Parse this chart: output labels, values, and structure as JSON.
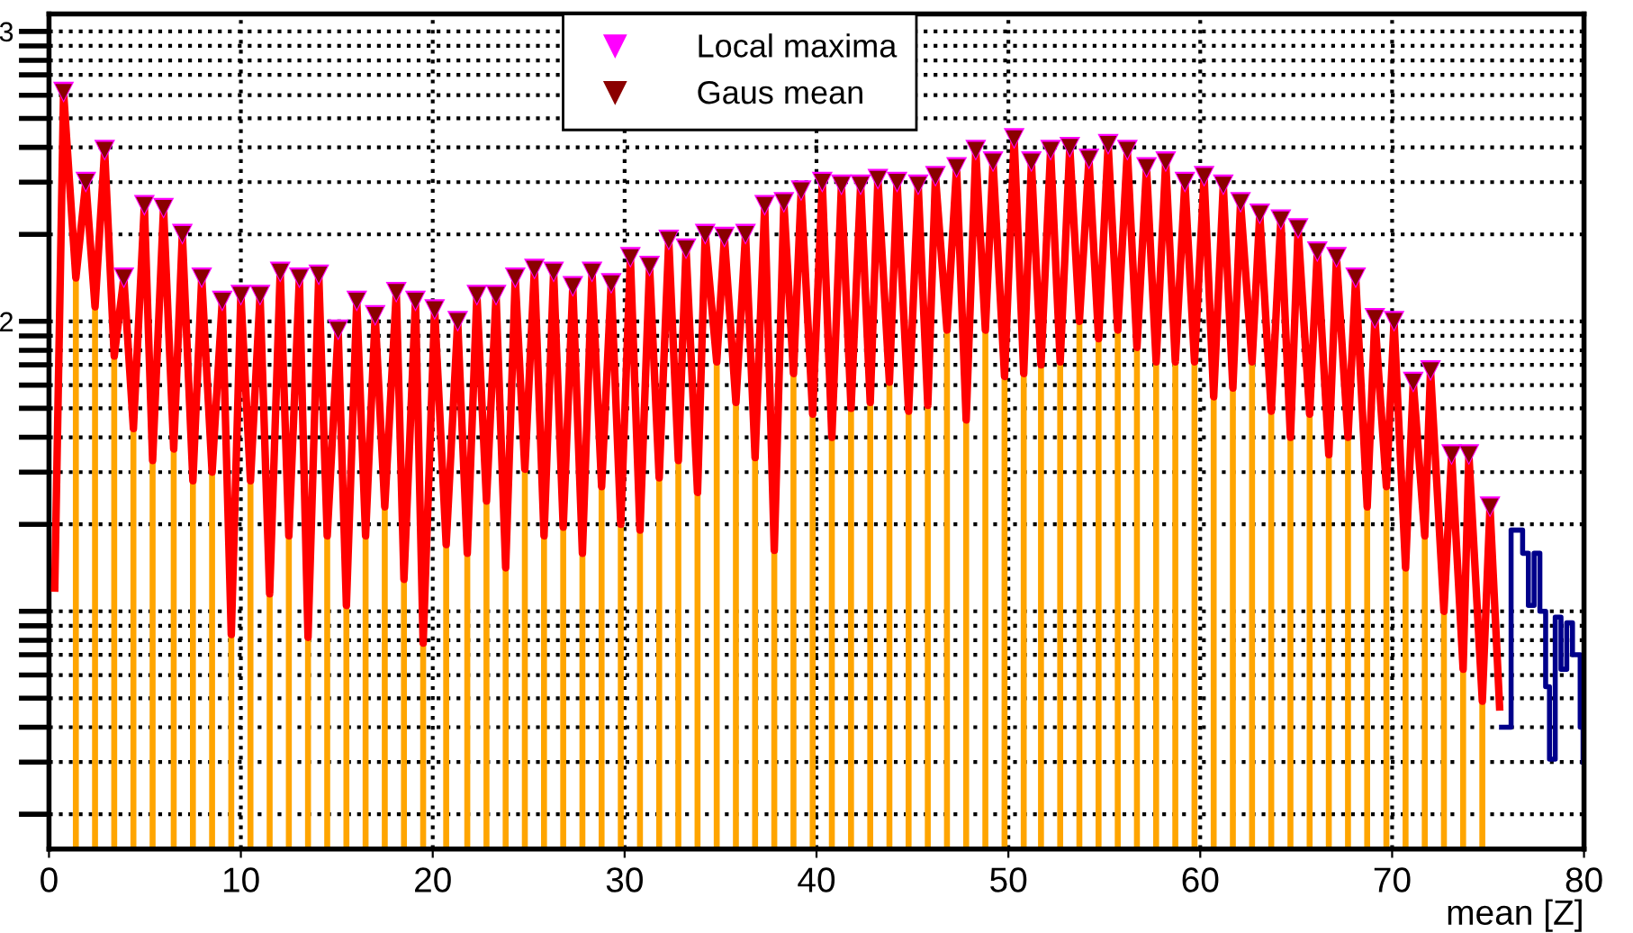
{
  "chart_data": {
    "type": "line",
    "xlabel": "mean [Z]",
    "grid": true,
    "legend": "top",
    "xlim": [
      0,
      80
    ],
    "xticks": [
      0,
      10,
      20,
      30,
      40,
      50,
      60,
      70,
      80
    ],
    "ylim": [
      0.18,
      3.06
    ],
    "yticks": [
      {
        "value": 0.3,
        "label": null
      },
      {
        "value": 0.48,
        "label": null
      },
      {
        "value": 0.6,
        "label": null
      },
      {
        "value": 0.7,
        "label": null
      },
      {
        "value": 0.78,
        "label": null
      },
      {
        "value": 0.85,
        "label": null
      },
      {
        "value": 0.9,
        "label": null
      },
      {
        "value": 0.95,
        "label": null
      },
      {
        "value": 1,
        "label": null
      },
      {
        "value": 1.3,
        "label": null
      },
      {
        "value": 1.48,
        "label": null
      },
      {
        "value": 1.6,
        "label": null
      },
      {
        "value": 1.7,
        "label": null
      },
      {
        "value": 1.78,
        "label": null
      },
      {
        "value": 1.85,
        "label": null
      },
      {
        "value": 1.9,
        "label": null
      },
      {
        "value": 1.95,
        "label": null
      },
      2,
      {
        "value": 2.3,
        "label": null
      },
      {
        "value": 2.48,
        "label": null
      },
      {
        "value": 2.6,
        "label": null
      },
      {
        "value": 2.7,
        "label": null
      },
      {
        "value": 2.78,
        "label": null
      },
      {
        "value": 2.85,
        "label": null
      },
      {
        "value": 2.9,
        "label": null
      },
      {
        "value": 2.95,
        "label": null
      },
      3
    ],
    "series": [
      {
        "type": "bar",
        "color": "#ffa500",
        "x": [
          1.4,
          2.4,
          3.4,
          4.4,
          5.4,
          6.5,
          7.5,
          8.5,
          9.5,
          10.5,
          11.5,
          12.5,
          13.5,
          14.5,
          15.5,
          16.5,
          17.5,
          18.5,
          19.5,
          20.7,
          21.8,
          22.8,
          23.8,
          24.8,
          25.8,
          26.8,
          27.8,
          28.8,
          29.8,
          30.8,
          31.8,
          32.8,
          33.8,
          34.8,
          35.8,
          36.8,
          37.8,
          38.8,
          39.8,
          40.8,
          41.8,
          42.8,
          43.8,
          44.8,
          45.8,
          46.8,
          47.8,
          48.8,
          49.8,
          50.8,
          51.7,
          52.7,
          53.7,
          54.7,
          55.7,
          56.7,
          57.7,
          58.7,
          59.7,
          60.7,
          61.7,
          62.7,
          63.7,
          64.7,
          65.7,
          66.7,
          67.7,
          68.7,
          69.7,
          70.7,
          71.7,
          72.7,
          73.7,
          74.7
        ],
        "values": [
          2.15,
          2.05,
          1.88,
          1.63,
          1.52,
          1.56,
          1.45,
          1.48,
          0.92,
          1.45,
          1.06,
          1.26,
          0.91,
          1.26,
          1.02,
          1.26,
          1.36,
          1.11,
          0.89,
          1.23,
          1.2,
          1.38,
          1.15,
          1.49,
          1.26,
          1.29,
          1.2,
          1.43,
          1.3,
          1.28,
          1.46,
          1.52,
          1.41,
          1.86,
          1.72,
          1.53,
          1.21,
          1.82,
          1.68,
          1.6,
          1.7,
          1.72,
          1.79,
          1.69,
          1.71,
          1.97,
          1.66,
          1.97,
          1.81,
          1.82,
          1.85,
          1.86,
          2.0,
          1.94,
          1.97,
          1.91,
          1.86,
          1.86,
          1.86,
          1.74,
          1.77,
          1.86,
          1.69,
          1.6,
          1.68,
          1.54,
          1.6,
          1.36,
          1.43,
          1.15,
          1.26,
          1.0,
          0.8,
          0.69
        ]
      },
      {
        "color": "#ff0000",
        "x": [
          0.3,
          0.76,
          1.4,
          1.92,
          2.4,
          2.9,
          3.4,
          3.9,
          4.4,
          4.97,
          5.4,
          5.97,
          6.5,
          6.95,
          7.5,
          7.96,
          8.5,
          9.03,
          9.5,
          10.0,
          10.5,
          11.0,
          11.5,
          12.05,
          12.5,
          13.05,
          13.5,
          14.06,
          14.5,
          15.07,
          15.5,
          16.04,
          16.5,
          17.0,
          17.5,
          18.1,
          18.5,
          19.1,
          19.5,
          20.1,
          20.7,
          21.3,
          21.8,
          22.3,
          22.8,
          23.3,
          23.8,
          24.3,
          24.8,
          25.3,
          25.8,
          26.3,
          26.8,
          27.3,
          27.8,
          28.3,
          28.8,
          29.3,
          29.8,
          30.3,
          30.8,
          31.3,
          31.8,
          32.3,
          32.8,
          33.2,
          33.8,
          34.2,
          34.8,
          35.2,
          35.8,
          36.3,
          36.8,
          37.3,
          37.8,
          38.3,
          38.8,
          39.2,
          39.8,
          40.3,
          40.8,
          41.3,
          41.8,
          42.3,
          42.8,
          43.2,
          43.8,
          44.2,
          44.8,
          45.3,
          45.8,
          46.2,
          46.8,
          47.3,
          47.8,
          48.3,
          48.8,
          49.2,
          49.8,
          50.3,
          50.8,
          51.2,
          51.7,
          52.2,
          52.7,
          53.2,
          53.7,
          54.2,
          54.7,
          55.2,
          55.7,
          56.2,
          56.7,
          57.2,
          57.7,
          58.2,
          58.7,
          59.2,
          59.7,
          60.2,
          60.7,
          61.2,
          61.7,
          62.1,
          62.7,
          63.1,
          63.7,
          64.2,
          64.7,
          65.1,
          65.7,
          66.1,
          66.7,
          67.1,
          67.7,
          68.1,
          68.7,
          69.1,
          69.7,
          70.1,
          70.7,
          71.1,
          71.7,
          72.0,
          72.7,
          73.1,
          73.7,
          74.0,
          74.7,
          75.1,
          75.6
        ],
        "values": [
          1.08,
          2.79,
          2.15,
          2.48,
          2.05,
          2.59,
          1.88,
          2.15,
          1.63,
          2.4,
          1.52,
          2.39,
          1.56,
          2.3,
          1.45,
          2.15,
          1.48,
          2.07,
          0.92,
          2.09,
          1.45,
          2.09,
          1.06,
          2.17,
          1.26,
          2.15,
          0.91,
          2.16,
          1.26,
          1.97,
          1.02,
          2.07,
          1.26,
          2.02,
          1.36,
          2.1,
          1.11,
          2.07,
          0.89,
          2.04,
          1.23,
          2.0,
          1.2,
          2.09,
          1.38,
          2.09,
          1.15,
          2.15,
          1.49,
          2.18,
          1.26,
          2.17,
          1.29,
          2.12,
          1.2,
          2.17,
          1.43,
          2.13,
          1.3,
          2.22,
          1.28,
          2.19,
          1.46,
          2.28,
          1.52,
          2.25,
          1.41,
          2.3,
          1.86,
          2.29,
          1.72,
          2.3,
          1.53,
          2.4,
          1.21,
          2.41,
          1.82,
          2.45,
          1.68,
          2.48,
          1.6,
          2.47,
          1.7,
          2.47,
          1.72,
          2.49,
          1.79,
          2.48,
          1.69,
          2.47,
          1.71,
          2.5,
          1.97,
          2.53,
          1.66,
          2.59,
          1.97,
          2.55,
          1.81,
          2.63,
          1.82,
          2.55,
          1.85,
          2.59,
          1.86,
          2.6,
          2.0,
          2.56,
          1.94,
          2.61,
          1.97,
          2.59,
          1.91,
          2.53,
          1.86,
          2.55,
          1.86,
          2.48,
          1.86,
          2.5,
          1.74,
          2.47,
          1.77,
          2.41,
          1.86,
          2.37,
          1.69,
          2.35,
          1.6,
          2.32,
          1.68,
          2.24,
          1.54,
          2.22,
          1.6,
          2.15,
          1.36,
          2.01,
          1.43,
          2.0,
          1.15,
          1.79,
          1.26,
          1.83,
          1.0,
          1.54,
          0.8,
          1.54,
          0.69,
          1.36,
          0.67
        ]
      },
      {
        "type": "step",
        "color": "#00008b",
        "x": [
          75.7,
          76.2,
          76.8,
          77.1,
          77.4,
          77.7,
          78.0,
          78.2,
          78.5,
          78.8,
          79.1,
          79.4,
          79.8,
          79.95
        ],
        "values": [
          0.6,
          1.28,
          1.2,
          1.02,
          1.2,
          1.0,
          0.74,
          0.49,
          0.98,
          0.8,
          0.96,
          0.85,
          0.6,
          0.48
        ]
      },
      {
        "type": "scatter",
        "name": "Local maxima",
        "color": "#ff00ff",
        "marker": "triangle",
        "x": [
          0.76,
          1.92,
          2.9,
          3.9,
          4.97,
          5.97,
          6.95,
          7.96,
          9.03,
          10.0,
          11.0,
          12.05,
          13.05,
          14.06,
          15.07,
          16.04,
          17.0,
          18.1,
          19.1,
          20.1,
          21.3,
          22.3,
          23.3,
          24.3,
          25.3,
          26.3,
          27.3,
          28.3,
          29.3,
          30.3,
          31.3,
          32.3,
          33.2,
          34.2,
          35.2,
          36.3,
          37.3,
          38.3,
          39.2,
          40.3,
          41.3,
          42.3,
          43.2,
          44.2,
          45.3,
          46.2,
          47.3,
          48.3,
          49.2,
          50.3,
          51.2,
          52.2,
          53.2,
          54.2,
          55.2,
          56.2,
          57.2,
          58.2,
          59.2,
          60.2,
          61.2,
          62.1,
          63.1,
          64.2,
          65.1,
          66.1,
          67.1,
          68.1,
          69.1,
          70.1,
          71.1,
          72.0,
          73.1,
          74.0,
          75.1
        ],
        "values": [
          2.79,
          2.48,
          2.59,
          2.15,
          2.4,
          2.39,
          2.3,
          2.15,
          2.07,
          2.09,
          2.09,
          2.17,
          2.15,
          2.16,
          1.97,
          2.07,
          2.02,
          2.1,
          2.07,
          2.04,
          2.0,
          2.09,
          2.09,
          2.15,
          2.18,
          2.17,
          2.12,
          2.17,
          2.13,
          2.22,
          2.19,
          2.28,
          2.25,
          2.3,
          2.29,
          2.3,
          2.4,
          2.41,
          2.45,
          2.48,
          2.47,
          2.47,
          2.49,
          2.48,
          2.47,
          2.5,
          2.53,
          2.59,
          2.55,
          2.63,
          2.55,
          2.59,
          2.6,
          2.56,
          2.61,
          2.59,
          2.53,
          2.55,
          2.48,
          2.5,
          2.47,
          2.41,
          2.37,
          2.35,
          2.32,
          2.24,
          2.22,
          2.15,
          2.01,
          2.0,
          1.79,
          1.83,
          1.54,
          1.54,
          1.36
        ]
      },
      {
        "type": "scatter",
        "name": "Gaus mean",
        "color": "#8b0000",
        "marker": "triangle",
        "x": [
          0.76,
          1.92,
          2.9,
          3.9,
          4.97,
          5.97,
          6.95,
          7.96,
          9.03,
          10.0,
          11.0,
          12.05,
          13.05,
          14.06,
          15.07,
          16.04,
          17.0,
          18.1,
          19.1,
          20.1,
          21.3,
          22.3,
          23.3,
          24.3,
          25.3,
          26.3,
          27.3,
          28.3,
          29.3,
          30.3,
          31.3,
          32.3,
          33.2,
          34.2,
          35.2,
          36.3,
          37.3,
          38.3,
          39.2,
          40.3,
          41.3,
          42.3,
          43.2,
          44.2,
          45.3,
          46.2,
          47.3,
          48.3,
          49.2,
          50.3,
          51.2,
          52.2,
          53.2,
          54.2,
          55.2,
          56.2,
          57.2,
          58.2,
          59.2,
          60.2,
          61.2,
          62.1,
          63.1,
          64.2,
          65.1,
          66.1,
          67.1,
          68.1,
          69.1,
          70.1,
          71.1,
          72.0,
          73.1,
          74.0,
          75.1
        ],
        "values": [
          2.79,
          2.48,
          2.59,
          2.15,
          2.4,
          2.39,
          2.3,
          2.15,
          2.07,
          2.09,
          2.09,
          2.17,
          2.15,
          2.16,
          1.97,
          2.07,
          2.02,
          2.1,
          2.07,
          2.04,
          2.0,
          2.09,
          2.09,
          2.15,
          2.18,
          2.17,
          2.12,
          2.17,
          2.13,
          2.22,
          2.19,
          2.28,
          2.25,
          2.3,
          2.29,
          2.3,
          2.4,
          2.41,
          2.45,
          2.48,
          2.47,
          2.47,
          2.49,
          2.48,
          2.47,
          2.5,
          2.53,
          2.59,
          2.55,
          2.63,
          2.55,
          2.59,
          2.6,
          2.56,
          2.61,
          2.59,
          2.53,
          2.55,
          2.48,
          2.5,
          2.47,
          2.41,
          2.37,
          2.35,
          2.32,
          2.24,
          2.22,
          2.15,
          2.01,
          2.0,
          1.79,
          1.83,
          1.54,
          1.54,
          1.36
        ]
      }
    ]
  }
}
